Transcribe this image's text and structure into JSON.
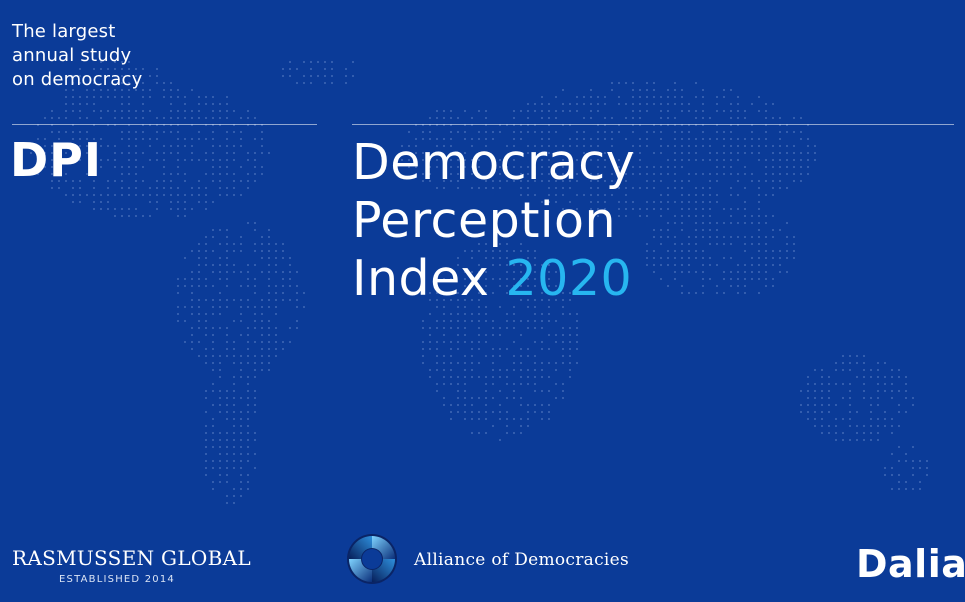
{
  "tagline": {
    "line1": "The largest",
    "line2": "annual study",
    "line3": "on democracy"
  },
  "dpi_logo": "DPI",
  "title": {
    "line1": "Democracy",
    "line2": "Perception",
    "line3_prefix": "Index",
    "year": "2020"
  },
  "footer": {
    "rasmussen_name": "RASMUSSEN GLOBAL",
    "rasmussen_established": "ESTABLISHED 2014",
    "alliance_name": "Alliance of Democracies",
    "dalia_logo": "Dalia"
  },
  "colors": {
    "background": "#0b3b98",
    "accent_year": "#27b6f0",
    "text": "#ffffff",
    "map_dots": "#6f8fd0"
  }
}
